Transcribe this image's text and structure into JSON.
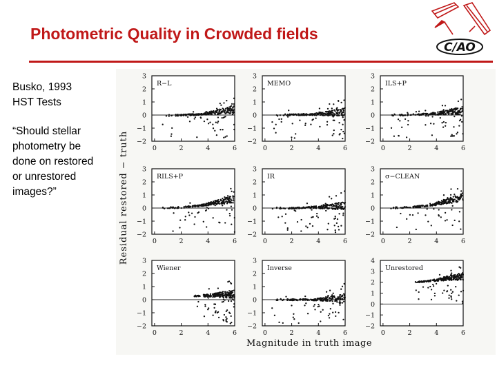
{
  "slide": {
    "title": "Photometric Quality in Crowded fields",
    "logo_text": "C/AO",
    "citation_lines": [
      "Busko, 1993",
      "HST Tests"
    ],
    "question_lines": [
      "“Should stellar",
      "photometry be",
      "done on restored",
      "or unrestored",
      "images?”"
    ],
    "accent_color": "#c01818"
  },
  "figure": {
    "ylabel": "Residual restored − truth",
    "xlabel": "Magnitude in truth image",
    "panels": [
      {
        "label": "R−L"
      },
      {
        "label": "MEMO"
      },
      {
        "label": "ILS+P"
      },
      {
        "label": "RILS+P"
      },
      {
        "label": "IR"
      },
      {
        "label": "σ−CLEAN"
      },
      {
        "label": "Wiener"
      },
      {
        "label": "Inverse"
      },
      {
        "label": "Unrestored"
      }
    ]
  },
  "chart_data": {
    "type": "scatter",
    "xlabel": "Magnitude in truth image",
    "ylabel": "Residual restored − truth",
    "panels": [
      {
        "name": "R−L",
        "xlim": [
          -0.2,
          6
        ],
        "ylim": [
          -2,
          3
        ],
        "xticks": [
          0,
          2,
          4,
          6
        ],
        "yticks": [
          -2,
          -1,
          0,
          1,
          2,
          3
        ],
        "trend": [
          [
            0.5,
            -0.05
          ],
          [
            2,
            0.0
          ],
          [
            3.5,
            0.05
          ],
          [
            4.5,
            0.2
          ],
          [
            5.5,
            0.35
          ],
          [
            6,
            0.45
          ]
        ]
      },
      {
        "name": "MEMO",
        "xlim": [
          -0.2,
          6
        ],
        "ylim": [
          -2,
          3
        ],
        "xticks": [
          0,
          2,
          4,
          6
        ],
        "yticks": [
          -2,
          -1,
          0,
          1,
          2,
          3
        ],
        "trend": [
          [
            0.5,
            0.0
          ],
          [
            2,
            0.02
          ],
          [
            3.5,
            0.05
          ],
          [
            4.5,
            0.1
          ],
          [
            5.5,
            0.2
          ],
          [
            6,
            0.25
          ]
        ]
      },
      {
        "name": "ILS+P",
        "xlim": [
          -0.2,
          6
        ],
        "ylim": [
          -2,
          3
        ],
        "xticks": [
          0,
          2,
          4,
          6
        ],
        "yticks": [
          -2,
          -1,
          0,
          1,
          2,
          3
        ],
        "trend": [
          [
            0.5,
            0.0
          ],
          [
            2,
            0.02
          ],
          [
            3.5,
            0.08
          ],
          [
            4.5,
            0.15
          ],
          [
            5.5,
            0.3
          ],
          [
            6,
            0.4
          ]
        ]
      },
      {
        "name": "RILS+P",
        "xlim": [
          -0.2,
          6
        ],
        "ylim": [
          -2,
          3
        ],
        "xticks": [
          0,
          2,
          4,
          6
        ],
        "yticks": [
          -2,
          -1,
          0,
          1,
          2,
          3
        ],
        "trend": [
          [
            0.5,
            0.0
          ],
          [
            2,
            0.05
          ],
          [
            3.5,
            0.2
          ],
          [
            4.5,
            0.4
          ],
          [
            5.5,
            0.6
          ],
          [
            6,
            0.7
          ]
        ]
      },
      {
        "name": "IR",
        "xlim": [
          -0.2,
          6
        ],
        "ylim": [
          -2,
          3
        ],
        "xticks": [
          0,
          2,
          4,
          6
        ],
        "yticks": [
          -2,
          -1,
          0,
          1,
          2,
          3
        ],
        "trend": [
          [
            0.5,
            0.0
          ],
          [
            2,
            0.0
          ],
          [
            3.5,
            0.05
          ],
          [
            4.5,
            0.1
          ],
          [
            5.5,
            0.15
          ],
          [
            6,
            0.2
          ]
        ]
      },
      {
        "name": "σ−CLEAN",
        "xlim": [
          -0.2,
          6
        ],
        "ylim": [
          -2,
          3
        ],
        "xticks": [
          0,
          2,
          4,
          6
        ],
        "yticks": [
          -2,
          -1,
          0,
          1,
          2,
          3
        ],
        "trend": [
          [
            0.5,
            0.0
          ],
          [
            2,
            0.05
          ],
          [
            3.5,
            0.2
          ],
          [
            4.5,
            0.45
          ],
          [
            5.5,
            0.7
          ],
          [
            6,
            0.85
          ]
        ]
      },
      {
        "name": "Wiener",
        "xlim": [
          -0.2,
          6
        ],
        "ylim": [
          -2,
          3
        ],
        "xticks": [
          0,
          2,
          4,
          6
        ],
        "yticks": [
          -2,
          -1,
          0,
          1,
          2,
          3
        ],
        "trend": [
          [
            2.8,
            0.25
          ],
          [
            3.5,
            0.3
          ],
          [
            4.5,
            0.35
          ],
          [
            5.5,
            0.4
          ],
          [
            6,
            0.4
          ]
        ]
      },
      {
        "name": "Inverse",
        "xlim": [
          -0.2,
          6
        ],
        "ylim": [
          -2,
          3
        ],
        "xticks": [
          0,
          2,
          4,
          6
        ],
        "yticks": [
          -2,
          -1,
          0,
          1,
          2,
          3
        ],
        "trend": [
          [
            0.5,
            0.0
          ],
          [
            2,
            0.0
          ],
          [
            3.5,
            0.0
          ],
          [
            4.5,
            0.05
          ],
          [
            5.5,
            0.1
          ],
          [
            6,
            0.1
          ]
        ]
      },
      {
        "name": "Unrestored",
        "xlim": [
          -0.2,
          6
        ],
        "ylim": [
          -2,
          4
        ],
        "xticks": [
          0,
          2,
          4,
          6
        ],
        "yticks": [
          -2,
          -1,
          0,
          1,
          2,
          3,
          4
        ],
        "trend": [
          [
            2.2,
            2.0
          ],
          [
            3,
            2.05
          ],
          [
            4,
            2.2
          ],
          [
            5,
            2.4
          ],
          [
            6,
            2.5
          ]
        ]
      }
    ]
  }
}
